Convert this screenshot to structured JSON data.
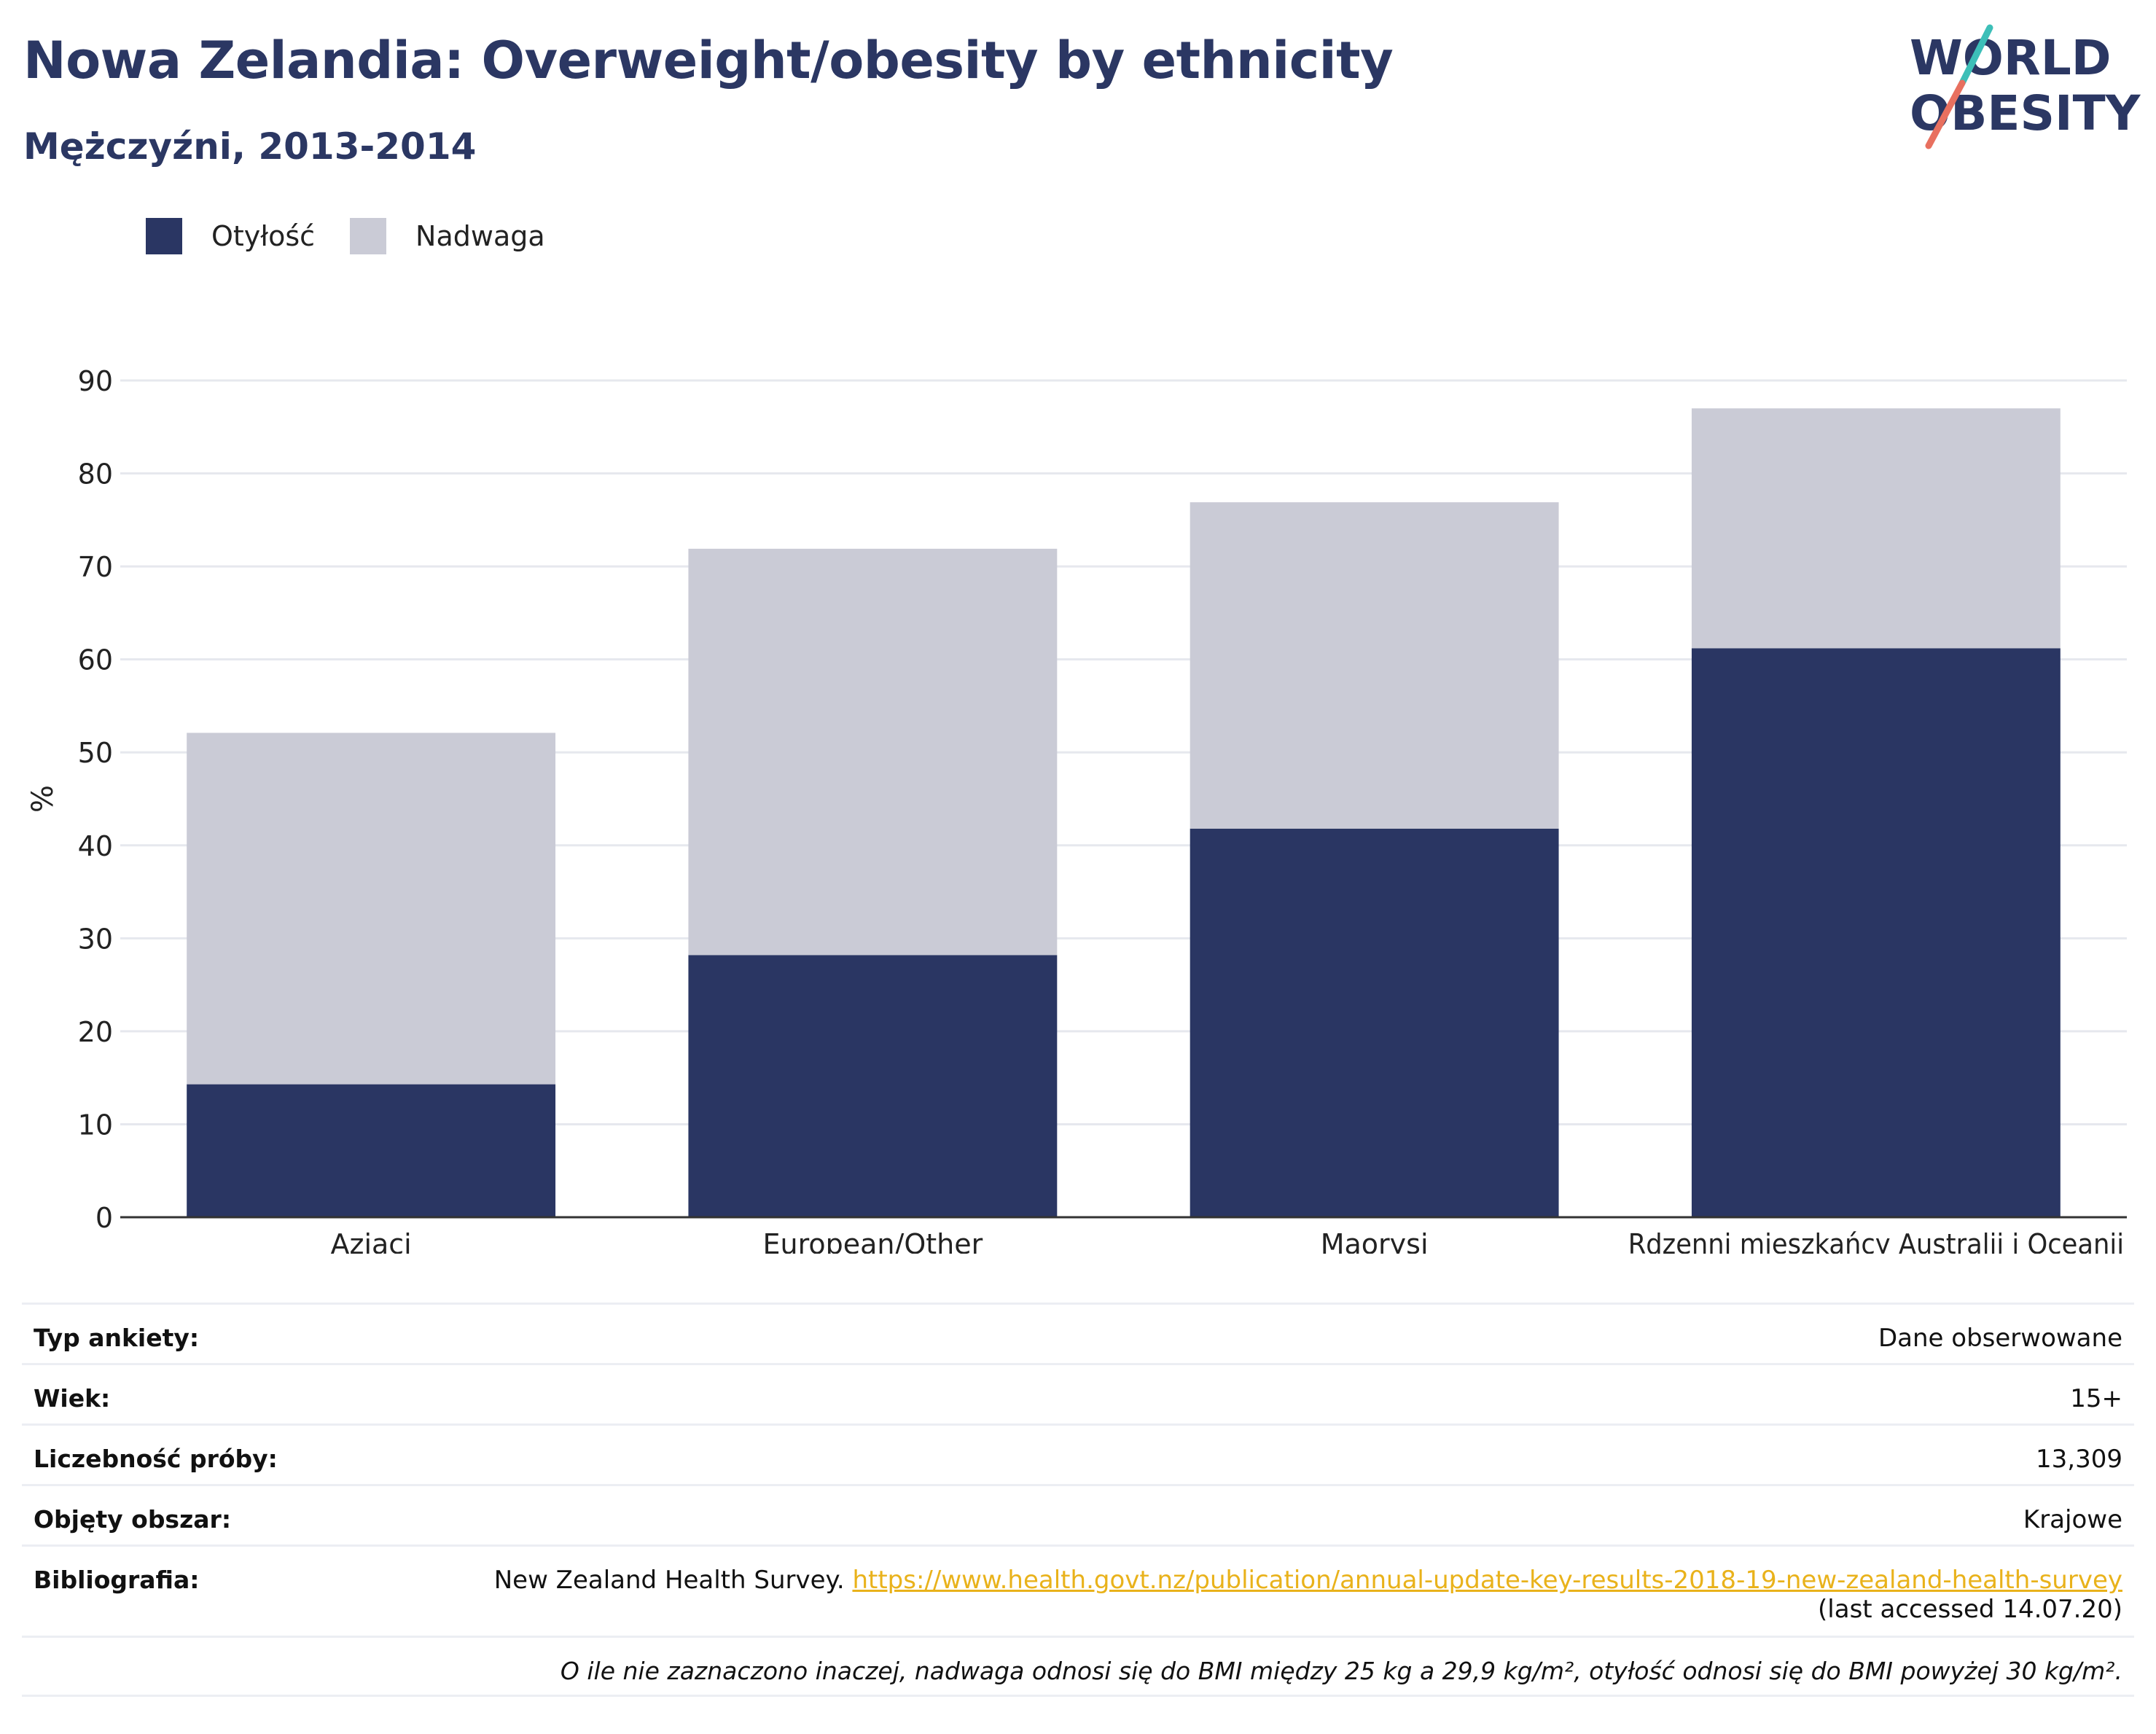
{
  "title": "Nowa Zelandia: Overweight/obesity by ethnicity",
  "subtitle": "Mężczyźni, 2013-2014",
  "logo": {
    "line1": "WORLD",
    "line2": "OBESITY"
  },
  "colors": {
    "obesity": "#2a3663",
    "overweight": "#cacbd6",
    "title": "#2b3763",
    "link": "#e9b21b",
    "logo_teal": "#3dbfb8",
    "logo_coral": "#e8705f"
  },
  "chart_data": {
    "type": "bar",
    "stacked": true,
    "categories": [
      "Azjaci",
      "European/Other",
      "Maorysi",
      "Rdzenni mieszkańcy Australii i Oceanii"
    ],
    "series": [
      {
        "name": "Otyłość",
        "values": [
          14.3,
          28.2,
          41.8,
          61.2
        ]
      },
      {
        "name": "Nadwaga",
        "values": [
          37.8,
          43.7,
          35.1,
          25.8
        ]
      }
    ],
    "ylabel": "%",
    "ylim": [
      0,
      90
    ],
    "yticks": [
      0,
      10,
      20,
      30,
      40,
      50,
      60,
      70,
      80,
      90
    ],
    "grid": true,
    "legend_position": "top-left"
  },
  "meta": [
    {
      "key": "Typ ankiety:",
      "value": "Dane obserwowane"
    },
    {
      "key": "Wiek:",
      "value": "15+"
    },
    {
      "key": "Liczebność próby:",
      "value": "13,309"
    },
    {
      "key": "Objęty obszar:",
      "value": "Krajowe"
    }
  ],
  "bibliography": {
    "key": "Bibliografia:",
    "text": "New Zealand Health Survey.",
    "link": "https://www.health.govt.nz/publication/annual-update-key-results-2018-19-new-zealand-health-survey",
    "accessed": "(last accessed 14.07.20)"
  },
  "footnote": "O ile nie zaznaczono inaczej, nadwaga odnosi się do BMI między 25 kg a 29,9 kg/m², otyłość odnosi się do BMI powyżej 30 kg/m²."
}
